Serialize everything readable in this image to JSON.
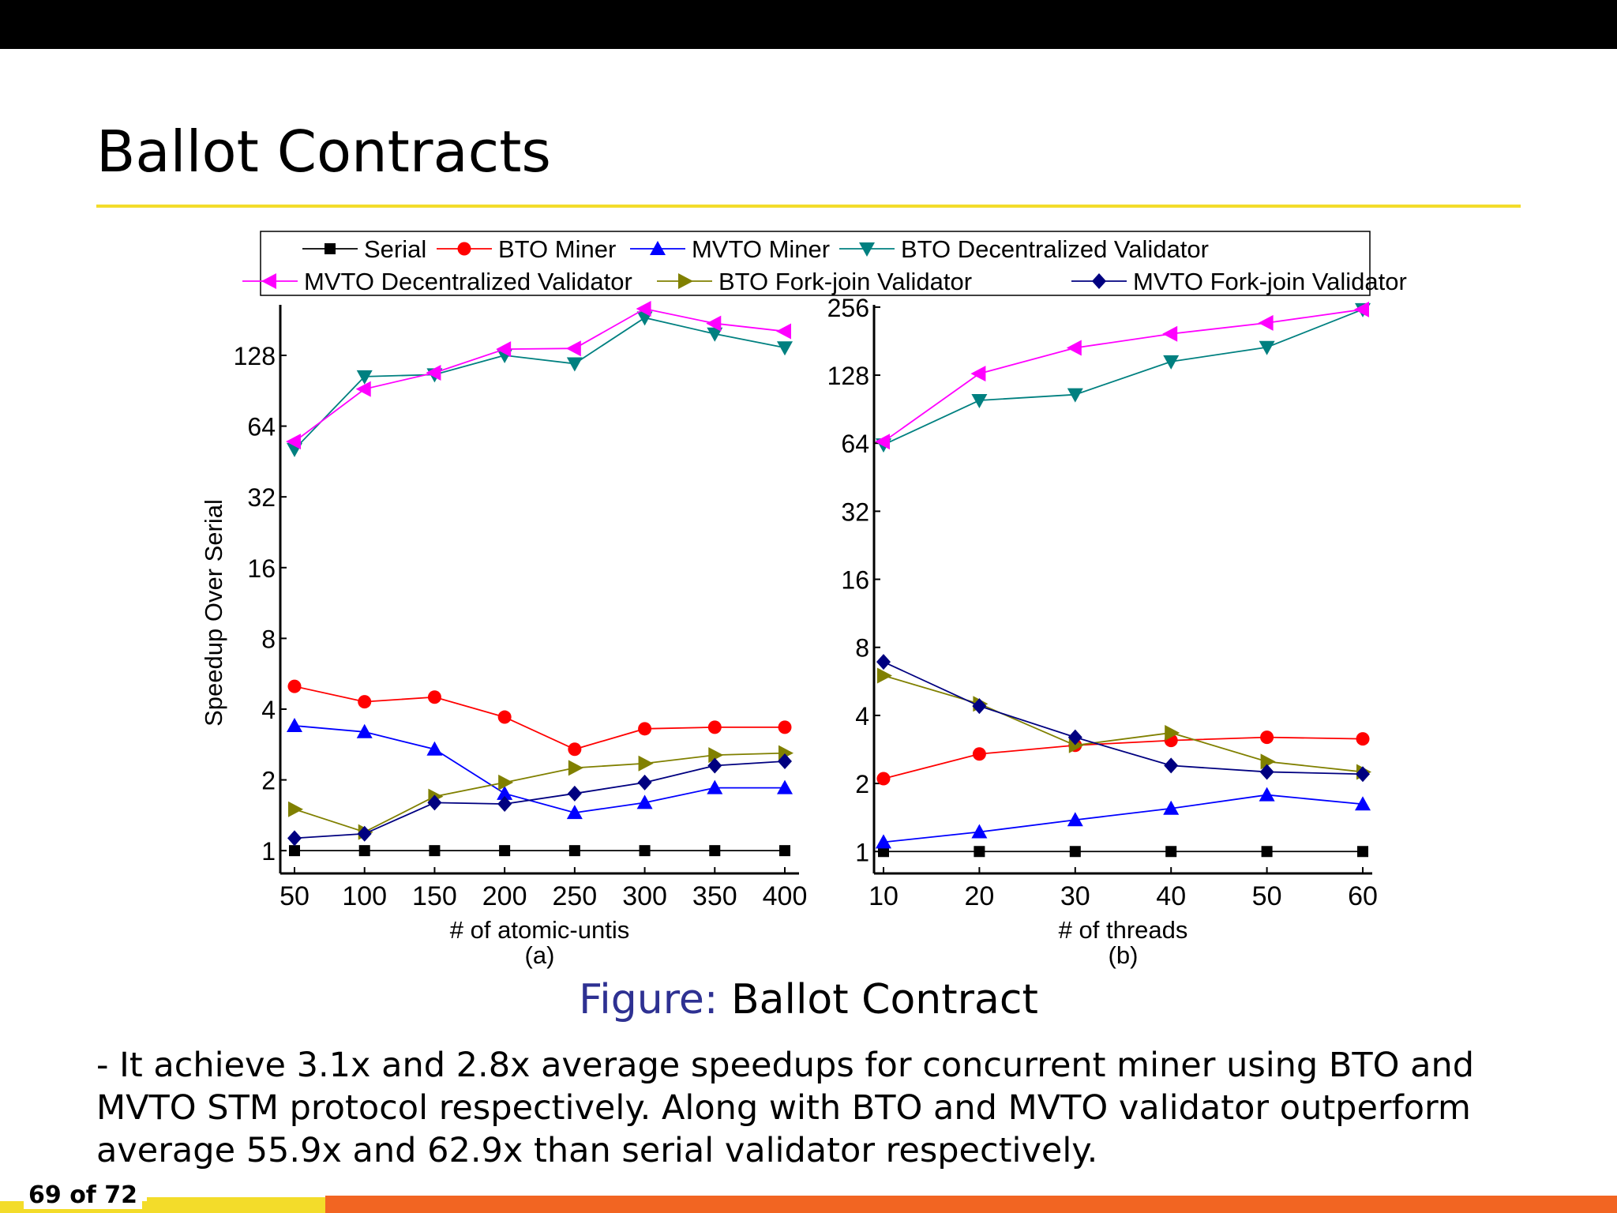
{
  "slide": {
    "title": "Ballot Contracts",
    "caption_label": "Figure:",
    "caption_text": "Ballot Contract",
    "body": "- It achieve 3.1x and 2.8x average speedups for concurrent miner using BTO and MVTO STM protocol respectively. Along with BTO and MVTO validator outperform average 55.9x and 62.9x than serial validator respectively.",
    "page_number": "69 of 72"
  },
  "colors": {
    "title_rule": "#f3dc2a",
    "caption_label": "#2e3192",
    "footer_orange": "#f26522"
  },
  "chart_data": {
    "legend": [
      {
        "name": "Serial",
        "color": "#000000",
        "marker": "square"
      },
      {
        "name": "BTO Miner",
        "color": "#ff0000",
        "marker": "circle"
      },
      {
        "name": "MVTO Miner",
        "color": "#0000ff",
        "marker": "triangle-up"
      },
      {
        "name": "BTO Decentralized Validator",
        "color": "#008080",
        "marker": "triangle-down"
      },
      {
        "name": "MVTO Decentralized Validator",
        "color": "#ff00ff",
        "marker": "triangle-left"
      },
      {
        "name": "BTO Fork-join Validator",
        "color": "#808000",
        "marker": "triangle-right"
      },
      {
        "name": "MVTO Fork-join Validator",
        "color": "#000080",
        "marker": "diamond"
      }
    ],
    "charts": [
      {
        "type": "line",
        "subplot_label": "(a)",
        "xlabel": "# of atomic-untis",
        "ylabel": "Speedup Over Serial",
        "yscale": "log2",
        "x": [
          50,
          100,
          150,
          200,
          250,
          300,
          350,
          400
        ],
        "x_ticks": [
          "50",
          "100",
          "150",
          "200",
          "250",
          "300",
          "350",
          "400"
        ],
        "y_ticks": [
          1,
          2,
          4,
          8,
          16,
          32,
          64,
          128
        ],
        "y_tick_labels": [
          "1",
          "2",
          "4",
          "8",
          "16",
          "32",
          "64",
          "128"
        ],
        "ylim": [
          0.8,
          210
        ],
        "series": [
          {
            "name": "Serial",
            "values": [
              1,
              1,
              1,
              1,
              1,
              1,
              1,
              1
            ]
          },
          {
            "name": "BTO Miner",
            "values": [
              5.0,
              4.3,
              4.5,
              3.7,
              2.7,
              3.3,
              3.35,
              3.35
            ]
          },
          {
            "name": "MVTO Miner",
            "values": [
              3.4,
              3.2,
              2.7,
              1.75,
              1.45,
              1.6,
              1.85,
              1.85
            ]
          },
          {
            "name": "BTO Decentralized Validator",
            "values": [
              51,
              104,
              106,
              128,
              118,
              185,
              158,
              138
            ]
          },
          {
            "name": "MVTO Decentralized Validator",
            "values": [
              55,
              92,
              108,
              136,
              137,
              202,
              175,
              162
            ]
          },
          {
            "name": "BTO Fork-join Validator",
            "values": [
              1.5,
              1.2,
              1.7,
              1.95,
              2.25,
              2.35,
              2.55,
              2.6
            ]
          },
          {
            "name": "MVTO Fork-join Validator",
            "values": [
              1.13,
              1.18,
              1.6,
              1.58,
              1.75,
              1.95,
              2.3,
              2.4
            ]
          }
        ]
      },
      {
        "type": "line",
        "subplot_label": "(b)",
        "xlabel": "# of threads",
        "ylabel": "",
        "yscale": "log2",
        "x": [
          10,
          20,
          30,
          40,
          50,
          60
        ],
        "x_ticks": [
          "10",
          "20",
          "30",
          "40",
          "50",
          "60"
        ],
        "y_ticks": [
          1,
          2,
          4,
          8,
          16,
          32,
          64,
          128,
          256
        ],
        "y_tick_labels": [
          "1",
          "2",
          "4",
          "8",
          "16",
          "32",
          "64",
          "128",
          "256"
        ],
        "ylim": [
          0.8,
          262
        ],
        "series": [
          {
            "name": "Serial",
            "values": [
              1,
              1,
              1,
              1,
              1,
              1
            ]
          },
          {
            "name": "BTO Miner",
            "values": [
              2.1,
              2.7,
              2.95,
              3.1,
              3.2,
              3.15
            ]
          },
          {
            "name": "MVTO Miner",
            "values": [
              1.1,
              1.22,
              1.38,
              1.55,
              1.78,
              1.62
            ]
          },
          {
            "name": "BTO Decentralized Validator",
            "values": [
              63,
              99,
              105,
              147,
              170,
              250
            ]
          },
          {
            "name": "MVTO Decentralized Validator",
            "values": [
              65,
              130,
              169,
              195,
              218,
              250
            ]
          },
          {
            "name": "BTO Fork-join Validator",
            "values": [
              6.0,
              4.5,
              2.95,
              3.35,
              2.5,
              2.25
            ]
          },
          {
            "name": "MVTO Fork-join Validator",
            "values": [
              6.9,
              4.4,
              3.2,
              2.4,
              2.25,
              2.2
            ]
          }
        ]
      }
    ]
  }
}
